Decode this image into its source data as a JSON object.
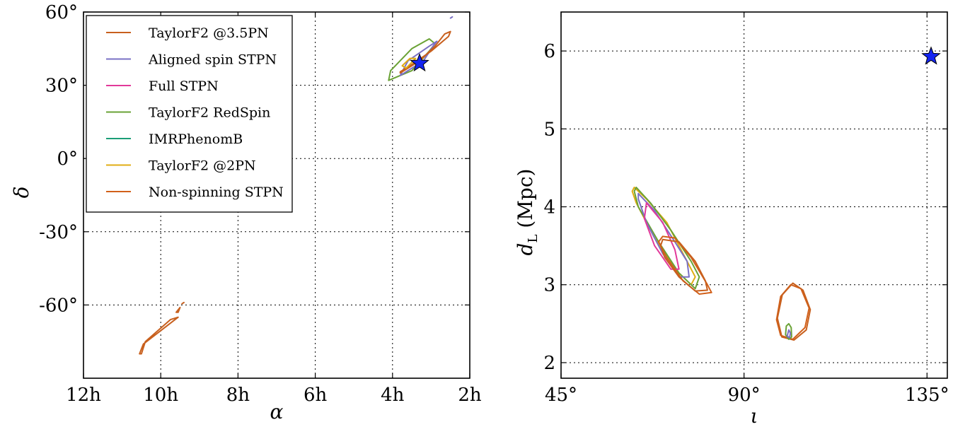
{
  "chart_data": [
    {
      "type": "line",
      "xlabel": "α",
      "ylabel": "δ",
      "x_ticks": [
        "12h",
        "10h",
        "8h",
        "6h",
        "4h",
        "2h"
      ],
      "x_tick_values": [
        12,
        10,
        8,
        6,
        4,
        2
      ],
      "y_ticks": [
        "60°",
        "30°",
        "0°",
        "-30°",
        "-60°"
      ],
      "y_tick_values": [
        60,
        30,
        0,
        -30,
        -60
      ],
      "xlim": [
        12,
        2
      ],
      "ylim": [
        -90,
        60
      ],
      "grid": true,
      "legend_position": "top-left",
      "series": [
        {
          "name": "TaylorF2 @3.5PN",
          "color": "#c8601e"
        },
        {
          "name": "Aligned spin STPN",
          "color": "#7a70c4"
        },
        {
          "name": "Full STPN",
          "color": "#e2399a"
        },
        {
          "name": "TaylorF2 RedSpin",
          "color": "#6aa235"
        },
        {
          "name": "IMRPhenomB",
          "color": "#1b9e77"
        },
        {
          "name": "TaylorF2 @2PN",
          "color": "#e0ad14"
        },
        {
          "name": "Non-spinning STPN",
          "color": "#d2601a"
        }
      ],
      "injection": {
        "x": 3.3,
        "y": 39,
        "marker": "star",
        "color": "#1424f0"
      },
      "contours": [
        {
          "color": "#6aa235",
          "points": [
            [
              4.1,
              32
            ],
            [
              3.5,
              36
            ],
            [
              3.05,
              44
            ],
            [
              2.9,
              47
            ],
            [
              3.05,
              49
            ],
            [
              3.5,
              45
            ],
            [
              4.05,
              36
            ]
          ]
        },
        {
          "color": "#7a70c4",
          "points": [
            [
              3.8,
              34
            ],
            [
              3.2,
              40
            ],
            [
              2.95,
              46
            ],
            [
              2.85,
              48
            ],
            [
              3.05,
              46
            ],
            [
              3.6,
              40
            ]
          ]
        },
        {
          "color": "#c8601e",
          "points": [
            [
              3.8,
              35
            ],
            [
              3.3,
              40
            ],
            [
              2.9,
              46
            ],
            [
              2.65,
              51
            ],
            [
              2.5,
              52
            ],
            [
              2.55,
              50
            ],
            [
              3.0,
              44
            ],
            [
              3.45,
              39
            ],
            [
              3.8,
              35.5
            ]
          ]
        },
        {
          "color": "#e0ad14",
          "points": [
            [
              3.65,
              37
            ],
            [
              3.4,
              41
            ],
            [
              3.55,
              41
            ],
            [
              3.75,
              38
            ]
          ]
        },
        {
          "color": "#c8601e",
          "points": [
            [
              10.55,
              -80
            ],
            [
              10.45,
              -76
            ],
            [
              9.55,
              -65
            ],
            [
              9.75,
              -66
            ],
            [
              10.4,
              -75
            ],
            [
              10.5,
              -80
            ]
          ]
        },
        {
          "color": "#c8601e",
          "points": [
            [
              9.6,
              -63
            ],
            [
              9.5,
              -61
            ],
            [
              9.55,
              -63
            ]
          ]
        },
        {
          "color": "#c8601e",
          "points": [
            [
              9.45,
              -59.5
            ],
            [
              9.4,
              -59
            ]
          ]
        },
        {
          "color": "#7a70c4",
          "points": [
            [
              2.5,
              57.5
            ],
            [
              2.45,
              58
            ]
          ]
        }
      ]
    },
    {
      "type": "line",
      "xlabel": "ι",
      "ylabel": "d_L (Mpc)",
      "x_ticks": [
        "45°",
        "90°",
        "135°"
      ],
      "x_tick_values": [
        45,
        90,
        135
      ],
      "y_ticks": [
        "2",
        "3",
        "4",
        "5",
        "6"
      ],
      "y_tick_values": [
        2,
        3,
        4,
        5,
        6
      ],
      "xlim": [
        45,
        140
      ],
      "ylim": [
        1.8,
        6.5
      ],
      "grid": true,
      "injection": {
        "x": 136,
        "y": 5.93,
        "marker": "star",
        "color": "#1424f0"
      },
      "contours": [
        {
          "color": "#e0ad14",
          "points": [
            [
              63,
              4.25
            ],
            [
              66,
              4.1
            ],
            [
              71,
              3.8
            ],
            [
              76,
              3.3
            ],
            [
              78,
              3.1
            ],
            [
              77,
              3.0
            ],
            [
              73,
              3.2
            ],
            [
              68,
              3.6
            ],
            [
              63.5,
              4.05
            ],
            [
              62.5,
              4.2
            ],
            [
              63,
              4.25
            ]
          ]
        },
        {
          "color": "#6aa235",
          "points": [
            [
              63.5,
              4.25
            ],
            [
              67,
              4.05
            ],
            [
              72,
              3.7
            ],
            [
              77,
              3.3
            ],
            [
              79,
              3.1
            ],
            [
              78,
              2.95
            ],
            [
              74,
              3.15
            ],
            [
              69,
              3.55
            ],
            [
              64,
              4.0
            ],
            [
              63,
              4.2
            ],
            [
              63.5,
              4.25
            ]
          ]
        },
        {
          "color": "#7a70c4",
          "points": [
            [
              64,
              4.17
            ],
            [
              68,
              3.95
            ],
            [
              73,
              3.55
            ],
            [
              76,
              3.3
            ],
            [
              76.5,
              3.1
            ],
            [
              74,
              3.1
            ],
            [
              70,
              3.4
            ],
            [
              66,
              3.8
            ],
            [
              64,
              4.1
            ],
            [
              64,
              4.17
            ]
          ]
        },
        {
          "color": "#e2399a",
          "points": [
            [
              66,
              4.05
            ],
            [
              70,
              3.8
            ],
            [
              73,
              3.45
            ],
            [
              74,
              3.2
            ],
            [
              72,
              3.2
            ],
            [
              68,
              3.5
            ],
            [
              65.5,
              3.85
            ],
            [
              66,
              4.05
            ]
          ]
        },
        {
          "color": "#d2601a",
          "points": [
            [
              70,
              3.62
            ],
            [
              73,
              3.6
            ],
            [
              77,
              3.35
            ],
            [
              81,
              3.0
            ],
            [
              82,
              2.9
            ],
            [
              79,
              2.88
            ],
            [
              75,
              3.05
            ],
            [
              71,
              3.35
            ],
            [
              69,
              3.55
            ],
            [
              70,
              3.62
            ]
          ]
        },
        {
          "color": "#c8601e",
          "points": [
            [
              70,
              3.58
            ],
            [
              74,
              3.55
            ],
            [
              78,
              3.3
            ],
            [
              80.5,
              3.05
            ],
            [
              81,
              2.93
            ],
            [
              78,
              2.92
            ],
            [
              74,
              3.1
            ],
            [
              70.5,
              3.35
            ],
            [
              69.5,
              3.5
            ],
            [
              70,
              3.58
            ]
          ]
        },
        {
          "color": "#d2601a",
          "points": [
            [
              101.5,
              3.0
            ],
            [
              104,
              2.95
            ],
            [
              106,
              2.7
            ],
            [
              105,
              2.45
            ],
            [
              102,
              2.3
            ],
            [
              99,
              2.35
            ],
            [
              98,
              2.55
            ],
            [
              99,
              2.85
            ],
            [
              101.5,
              3.0
            ]
          ]
        },
        {
          "color": "#c8601e",
          "points": [
            [
              102,
              3.02
            ],
            [
              104.5,
              2.93
            ],
            [
              106.3,
              2.68
            ],
            [
              105.3,
              2.42
            ],
            [
              102.3,
              2.29
            ],
            [
              99.3,
              2.33
            ],
            [
              98.2,
              2.57
            ],
            [
              99.4,
              2.87
            ],
            [
              102,
              3.02
            ]
          ]
        },
        {
          "color": "#6aa235",
          "points": [
            [
              101,
              2.5
            ],
            [
              101.6,
              2.45
            ],
            [
              101.7,
              2.33
            ],
            [
              101,
              2.3
            ],
            [
              100.2,
              2.36
            ],
            [
              100.4,
              2.47
            ],
            [
              101,
              2.5
            ]
          ]
        },
        {
          "color": "#7a70c4",
          "points": [
            [
              101,
              2.42
            ],
            [
              101.4,
              2.38
            ],
            [
              101.2,
              2.32
            ],
            [
              100.6,
              2.34
            ],
            [
              101,
              2.42
            ]
          ]
        }
      ]
    }
  ]
}
